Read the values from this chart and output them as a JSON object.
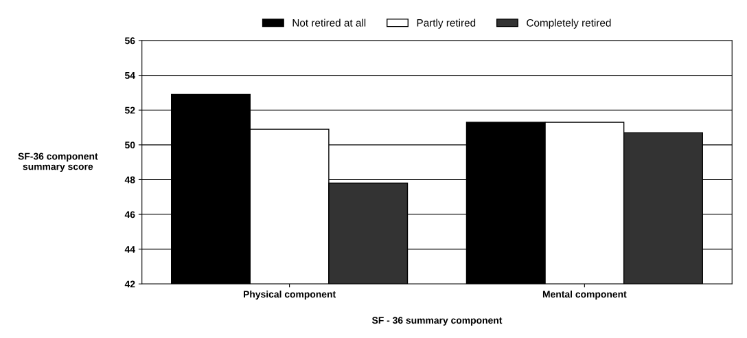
{
  "chart_data": {
    "type": "bar",
    "xlabel": "SF - 36 summary component",
    "ylabel": "SF-36 component\nsummary score",
    "categories": [
      "Physical component",
      "Mental component"
    ],
    "series": [
      {
        "name": "Not retired at all",
        "color": "#000000",
        "values": [
          52.9,
          51.3
        ]
      },
      {
        "name": "Partly retired",
        "color": "#ffffff",
        "values": [
          50.9,
          51.3
        ]
      },
      {
        "name": "Completely retired",
        "color": "#333333",
        "values": [
          47.8,
          50.7
        ]
      }
    ],
    "ylim": [
      42,
      56
    ],
    "yticks": [
      42,
      44,
      46,
      48,
      50,
      52,
      54,
      56
    ],
    "grid": "y",
    "legend": "top"
  }
}
